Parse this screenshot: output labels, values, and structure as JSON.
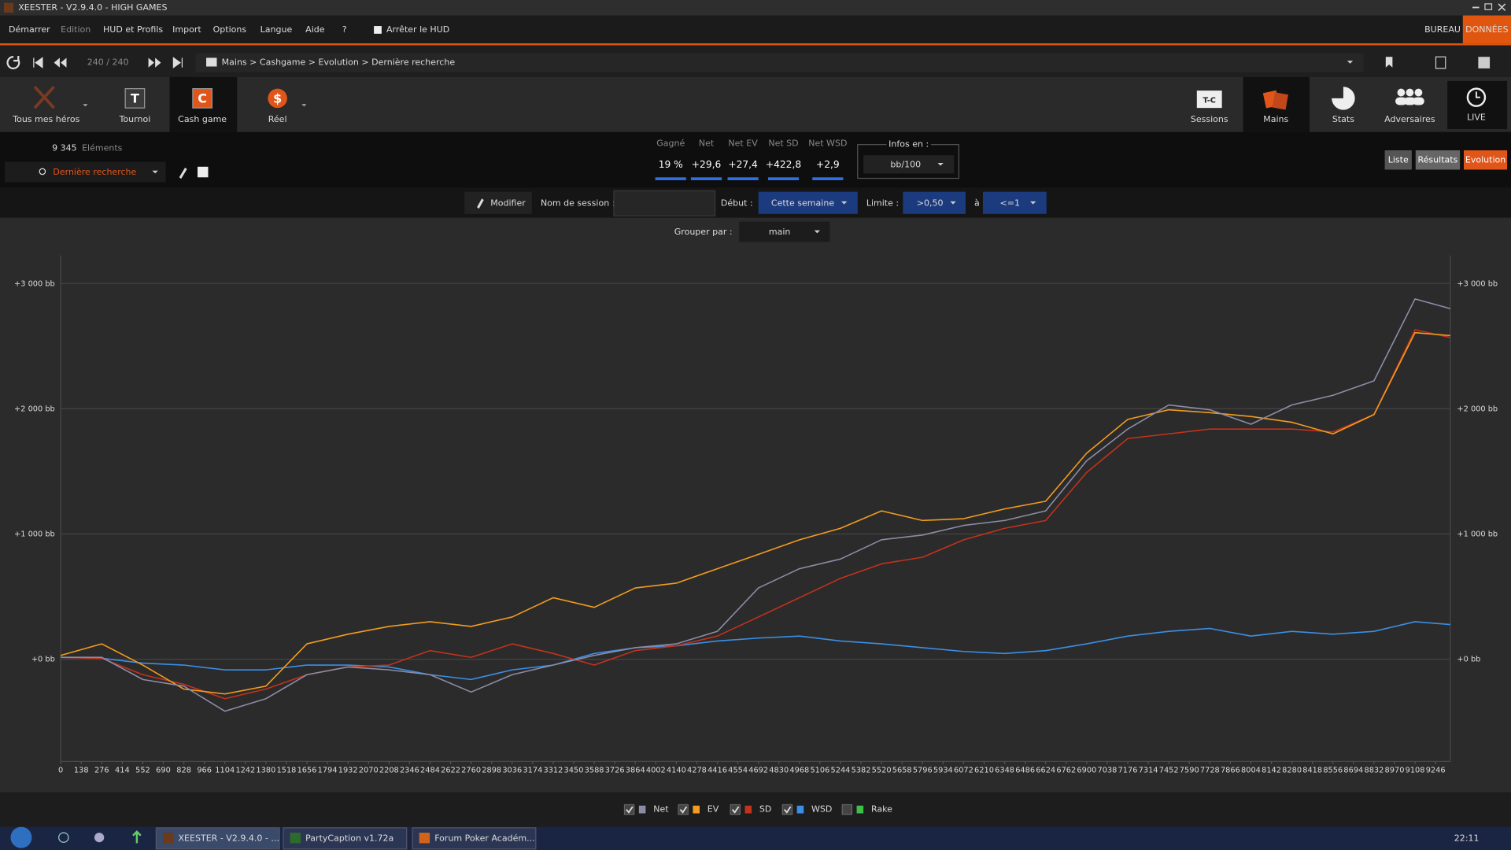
{
  "window_title": "XEESTER - V2.9.4.0 - HIGH GAMES",
  "menu": [
    "Démarrer",
    "Edition",
    "HUD et Profils",
    "Import",
    "Options",
    "Langue",
    "Aide",
    "?"
  ],
  "hud_toggle": "Arrêter le HUD",
  "mode_tabs": [
    "BUREAU",
    "DONNÉES"
  ],
  "nav": {
    "counter": "240 / 240",
    "breadcrumb": "Mains > Cashgame > Evolution > Dernière recherche"
  },
  "toolbar_left": [
    {
      "label": "Tous mes héros"
    },
    {
      "label": "Tournoi",
      "icon": "T"
    },
    {
      "label": "Cash game",
      "icon": "C"
    },
    {
      "label": "Réel",
      "icon": "$"
    }
  ],
  "toolbar_right": [
    {
      "label": "Sessions",
      "icon": "T-C"
    },
    {
      "label": "Mains"
    },
    {
      "label": "Stats"
    },
    {
      "label": "Adversaires"
    },
    {
      "label": "LIVE"
    }
  ],
  "elements": {
    "count": "9 345",
    "label": "Eléments"
  },
  "search": "Dernière recherche",
  "stats": [
    {
      "label": "Gagné",
      "value": "19 %"
    },
    {
      "label": "Net",
      "value": "+29,6"
    },
    {
      "label": "Net EV",
      "value": "+27,4"
    },
    {
      "label": "Net SD",
      "value": "+422,8"
    },
    {
      "label": "Net WSD",
      "value": "+2,9"
    }
  ],
  "infos": {
    "label": "Infos en :",
    "value": "bb/100"
  },
  "view_buttons": [
    "Liste",
    "Résultats",
    "Evolution"
  ],
  "filters": {
    "modify": "Modifier",
    "session_label": "Nom de session :",
    "start_label": "Début :",
    "start_value": "Cette semaine",
    "limit_label": "Limite :",
    "limit_from": ">0,50",
    "and": "à",
    "limit_to": "<=1",
    "group_label": "Grouper par :",
    "group_value": "main"
  },
  "chart_data": {
    "type": "line",
    "x": [
      0,
      276,
      552,
      828,
      1104,
      1380,
      1656,
      1932,
      2208,
      2484,
      2760,
      3036,
      3312,
      3588,
      3864,
      4140,
      4416,
      4692,
      4968,
      5244,
      5520,
      5796,
      6072,
      6348,
      6624,
      6900,
      7176,
      7452,
      7728,
      8004,
      8280,
      8556,
      8832,
      9108,
      9345
    ],
    "series": [
      {
        "name": "Net",
        "color": "#8c8ca6",
        "visible": true,
        "values": [
          15,
          15,
          -162,
          -215,
          -415,
          -315,
          -123,
          -62,
          -85,
          -123,
          -262,
          -123,
          -46,
          31,
          92,
          123,
          223,
          569,
          723,
          800,
          954,
          992,
          1069,
          1108,
          1185,
          1585,
          1838,
          2031,
          1992,
          1877,
          2031,
          2108,
          2223,
          2877,
          2800
        ]
      },
      {
        "name": "EV",
        "color": "#f39c1e",
        "visible": true,
        "values": [
          31,
          123,
          -46,
          -238,
          -277,
          -215,
          123,
          200,
          262,
          300,
          262,
          338,
          492,
          415,
          569,
          608,
          723,
          838,
          954,
          1046,
          1185,
          1108,
          1123,
          1200,
          1262,
          1646,
          1915,
          1992,
          1969,
          1938,
          1892,
          1800,
          1954,
          2608,
          2585
        ]
      },
      {
        "name": "SD",
        "color": "#c4321c",
        "visible": true,
        "values": [
          15,
          8,
          -123,
          -200,
          -315,
          -238,
          -123,
          -62,
          -46,
          69,
          15,
          123,
          46,
          -46,
          69,
          108,
          185,
          338,
          492,
          646,
          762,
          815,
          954,
          1046,
          1108,
          1492,
          1762,
          1800,
          1838,
          1838,
          1838,
          1815,
          1954,
          2631,
          2569
        ]
      },
      {
        "name": "WSD",
        "color": "#3b8fe6",
        "visible": true,
        "values": [
          15,
          8,
          -31,
          -46,
          -85,
          -85,
          -46,
          -46,
          -62,
          -123,
          -162,
          -85,
          -46,
          46,
          92,
          108,
          146,
          169,
          185,
          146,
          123,
          92,
          62,
          46,
          69,
          123,
          185,
          223,
          246,
          185,
          223,
          200,
          223,
          300,
          277
        ]
      },
      {
        "name": "Rake",
        "color": "#3fbf4a",
        "visible": false,
        "values": [
          null,
          null,
          null,
          null,
          null,
          null,
          null,
          null,
          null,
          null,
          null,
          null,
          null,
          null,
          null,
          null,
          null,
          null,
          null,
          null,
          null,
          null,
          null,
          null,
          null,
          null,
          null,
          null,
          null,
          null,
          null,
          null,
          null,
          null,
          null
        ]
      }
    ],
    "xlim": [
      0,
      9345
    ],
    "ylim": [
      -815,
      3225
    ],
    "xticks": [
      0,
      138,
      276,
      414,
      552,
      690,
      828,
      966,
      1104,
      1242,
      1380,
      1518,
      1656,
      1794,
      1932,
      2070,
      2208,
      2346,
      2484,
      2622,
      2760,
      2898,
      3036,
      3174,
      3312,
      3450,
      3588,
      3726,
      3864,
      4002,
      4140,
      4278,
      4416,
      4554,
      4692,
      4830,
      4968,
      5106,
      5244,
      5382,
      5520,
      5658,
      5796,
      5934,
      6072,
      6210,
      6348,
      6486,
      6624,
      6762,
      6900,
      7038,
      7176,
      7314,
      7452,
      7590,
      7728,
      7866,
      8004,
      8142,
      8280,
      8418,
      8556,
      8694,
      8832,
      8970,
      9108,
      9246
    ],
    "yticks": [
      {
        "value": 0,
        "label": "+0 bb"
      },
      {
        "value": 1000,
        "label": "+1 000 bb"
      },
      {
        "value": 2000,
        "label": "+2 000 bb"
      },
      {
        "value": 3000,
        "label": "+3 000 bb"
      }
    ],
    "grid": true
  },
  "taskbar": {
    "items": [
      "XEESTER - V2.9.4.0 - ...",
      "PartyCaption v1.72a",
      "Forum Poker Académ..."
    ],
    "clock": "22:11"
  }
}
